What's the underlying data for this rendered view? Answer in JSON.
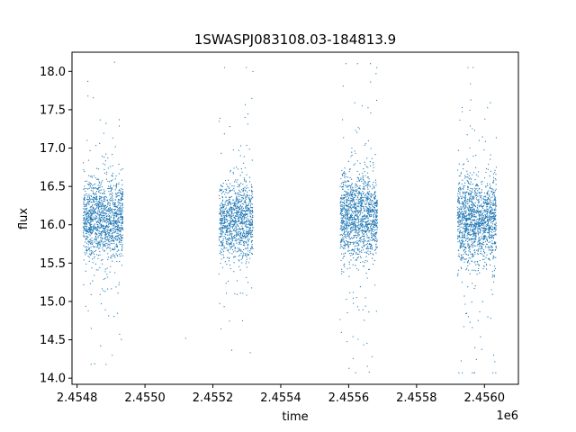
{
  "chart_data": {
    "type": "scatter",
    "title": "1SWASPJ083108.03-184813.9",
    "xlabel": "time",
    "ylabel": "flux",
    "x_offset_label": "1e6",
    "xlim": [
      2454785,
      2456100
    ],
    "ylim": [
      13.92,
      18.25
    ],
    "x_ticks": [
      2454800,
      2455000,
      2455200,
      2455400,
      2455600,
      2455800,
      2456000
    ],
    "x_tick_labels": [
      "2.4548",
      "2.4550",
      "2.4552",
      "2.4554",
      "2.4556",
      "2.4558",
      "2.4560"
    ],
    "y_ticks": [
      14.0,
      14.5,
      15.0,
      15.5,
      16.0,
      16.5,
      17.0,
      17.5,
      18.0
    ],
    "y_tick_labels": [
      "14.0",
      "14.5",
      "15.0",
      "15.5",
      "16.0",
      "16.5",
      "17.0",
      "17.5",
      "18.0"
    ],
    "grid": false,
    "legend": "none",
    "marker_color": "#1f77b4",
    "series": [
      {
        "values_description": "dense photometric light curve",
        "clusters": [
          {
            "x_range": [
              2454818,
              2454935
            ],
            "center": 16.07,
            "spread": 0.34,
            "outlier_range": [
              14.18,
              18.12
            ],
            "count": 1400
          },
          {
            "x_range": [
              2455218,
              2455318
            ],
            "center": 16.05,
            "spread": 0.33,
            "outlier_range": [
              14.18,
              18.05
            ],
            "count": 1100
          },
          {
            "x_range": [
              2455575,
              2455685
            ],
            "center": 16.12,
            "spread": 0.36,
            "outlier_range": [
              14.07,
              18.1
            ],
            "count": 1400
          },
          {
            "x_range": [
              2455920,
              2456035
            ],
            "center": 16.05,
            "spread": 0.36,
            "outlier_range": [
              14.07,
              18.05
            ],
            "count": 1500
          }
        ],
        "isolated_points": [
          {
            "x": 2455120,
            "y": 14.52
          }
        ]
      }
    ]
  }
}
